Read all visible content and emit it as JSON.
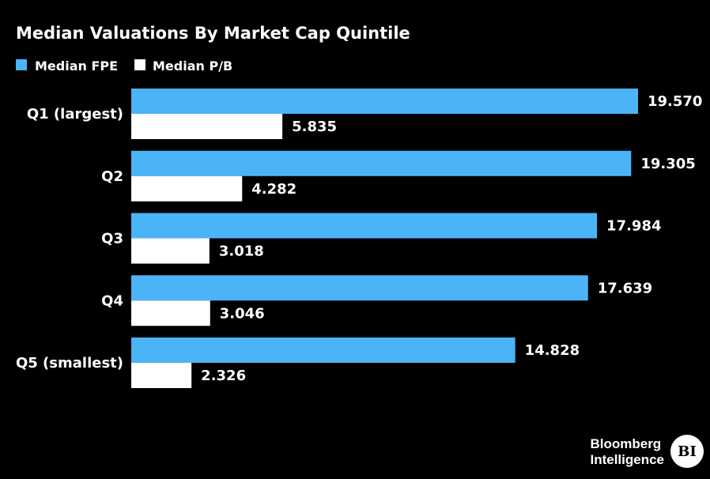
{
  "chart_data": {
    "type": "bar",
    "orientation": "horizontal",
    "title": "Median Valuations By Market Cap Quintile",
    "categories": [
      "Q1 (largest)",
      "Q2",
      "Q3",
      "Q4",
      "Q5 (smallest)"
    ],
    "series": [
      {
        "name": "Median FPE",
        "values": [
          19.57,
          19.305,
          17.984,
          17.639,
          14.828
        ],
        "labels": [
          "19.570",
          "19.305",
          "17.984",
          "17.639",
          "14.828"
        ],
        "color": "#4BB4F7"
      },
      {
        "name": "Median P/B",
        "values": [
          5.835,
          4.282,
          3.018,
          3.046,
          2.326
        ],
        "labels": [
          "5.835",
          "4.282",
          "3.018",
          "3.046",
          "2.326"
        ],
        "color": "#FFFFFF"
      }
    ],
    "xlim": [
      0,
      20
    ],
    "grid": false,
    "legend": "top-left"
  },
  "branding": {
    "line1": "Bloomberg",
    "line2": "Intelligence",
    "badge": "BI"
  }
}
